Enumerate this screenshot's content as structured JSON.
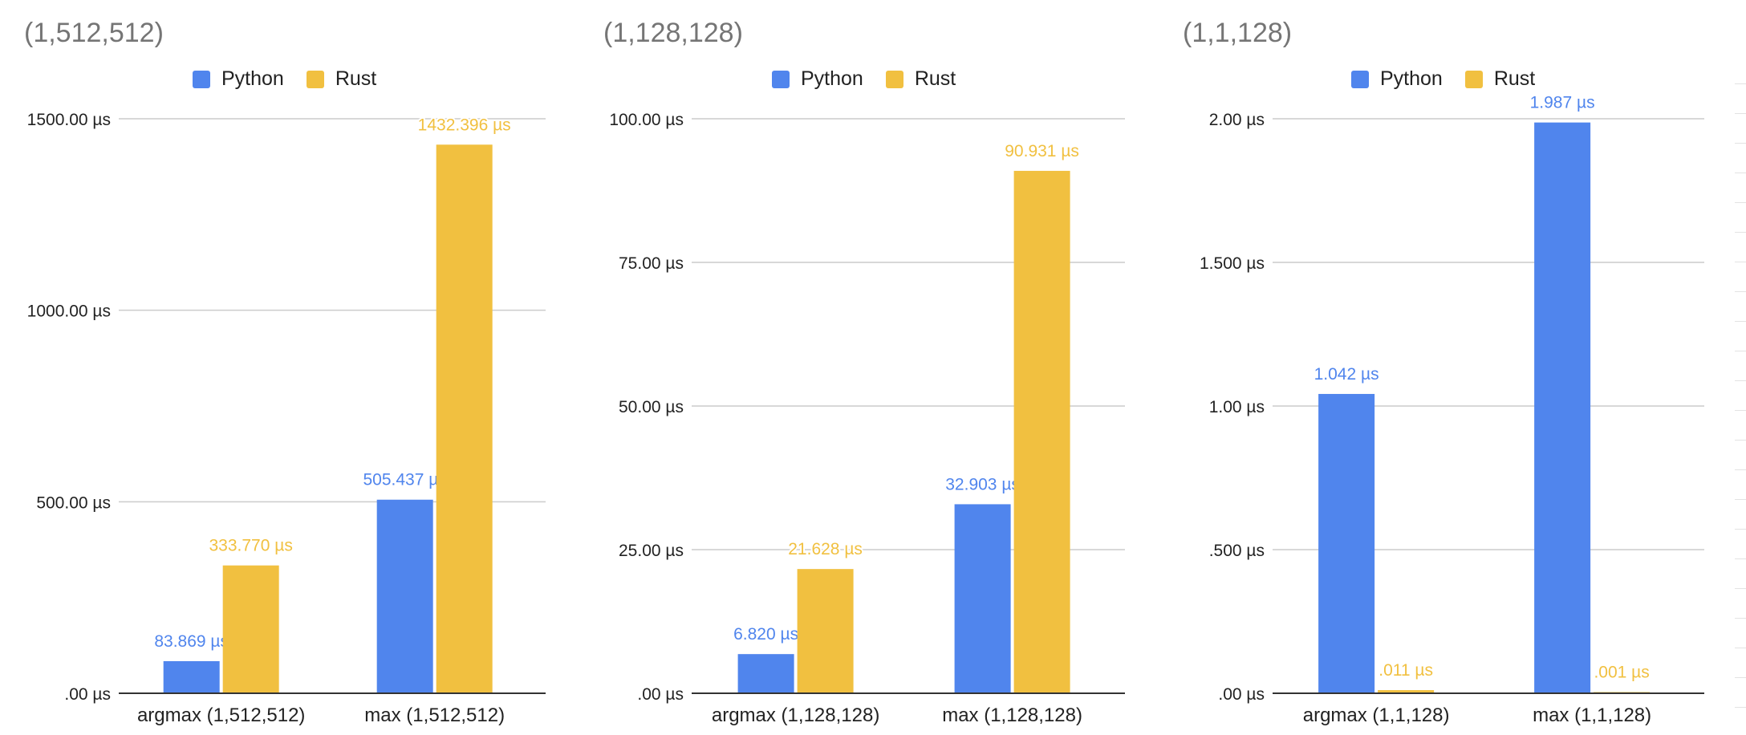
{
  "colors": {
    "python": "#5085ed",
    "rust": "#f1c040",
    "grid": "#cccccc",
    "axis": "#333333",
    "title": "#757575"
  },
  "chart_data": [
    {
      "type": "bar",
      "title": "(1,512,512)",
      "categories": [
        "argmax (1,512,512)",
        "max (1,512,512)"
      ],
      "series": [
        {
          "name": "Python",
          "values": [
            83.869,
            505.437
          ],
          "labels": [
            "83.869 µs",
            "505.437 µs"
          ]
        },
        {
          "name": "Rust",
          "values": [
            333.77,
            1432.396
          ],
          "labels": [
            "333.770 µs",
            "1432.396 µs"
          ]
        }
      ],
      "ylim": [
        0,
        1500
      ],
      "yticks": [
        0,
        500,
        1000,
        1500
      ],
      "ytick_labels": [
        ".00 µs",
        "500.00 µs",
        "1000.00 µs",
        "1500.00 µs"
      ],
      "xlabel": "",
      "ylabel": "",
      "legend": "top",
      "grid": true
    },
    {
      "type": "bar",
      "title": "(1,128,128)",
      "categories": [
        "argmax (1,128,128)",
        "max (1,128,128)"
      ],
      "series": [
        {
          "name": "Python",
          "values": [
            6.82,
            32.903
          ],
          "labels": [
            "6.820 µs",
            "32.903 µs"
          ]
        },
        {
          "name": "Rust",
          "values": [
            21.628,
            90.931
          ],
          "labels": [
            "21.628 µs",
            "90.931 µs"
          ]
        }
      ],
      "ylim": [
        0,
        100
      ],
      "yticks": [
        0,
        25,
        50,
        75,
        100
      ],
      "ytick_labels": [
        ".00 µs",
        "25.00 µs",
        "50.00 µs",
        "75.00 µs",
        "100.00 µs"
      ],
      "xlabel": "",
      "ylabel": "",
      "legend": "top",
      "grid": true
    },
    {
      "type": "bar",
      "title": "(1,1,128)",
      "categories": [
        "argmax (1,1,128)",
        "max (1,1,128)"
      ],
      "series": [
        {
          "name": "Python",
          "values": [
            1.042,
            1.987
          ],
          "labels": [
            "1.042 µs",
            "1.987 µs"
          ]
        },
        {
          "name": "Rust",
          "values": [
            0.011,
            0.001
          ],
          "labels": [
            ".011 µs",
            ".001 µs"
          ]
        }
      ],
      "ylim": [
        0,
        2
      ],
      "yticks": [
        0,
        0.5,
        1,
        1.5,
        2
      ],
      "ytick_labels": [
        ".00 µs",
        ".500 µs",
        "1.00 µs",
        "1.500 µs",
        "2.00 µs"
      ],
      "xlabel": "",
      "ylabel": "",
      "legend": "top",
      "grid": true
    }
  ]
}
